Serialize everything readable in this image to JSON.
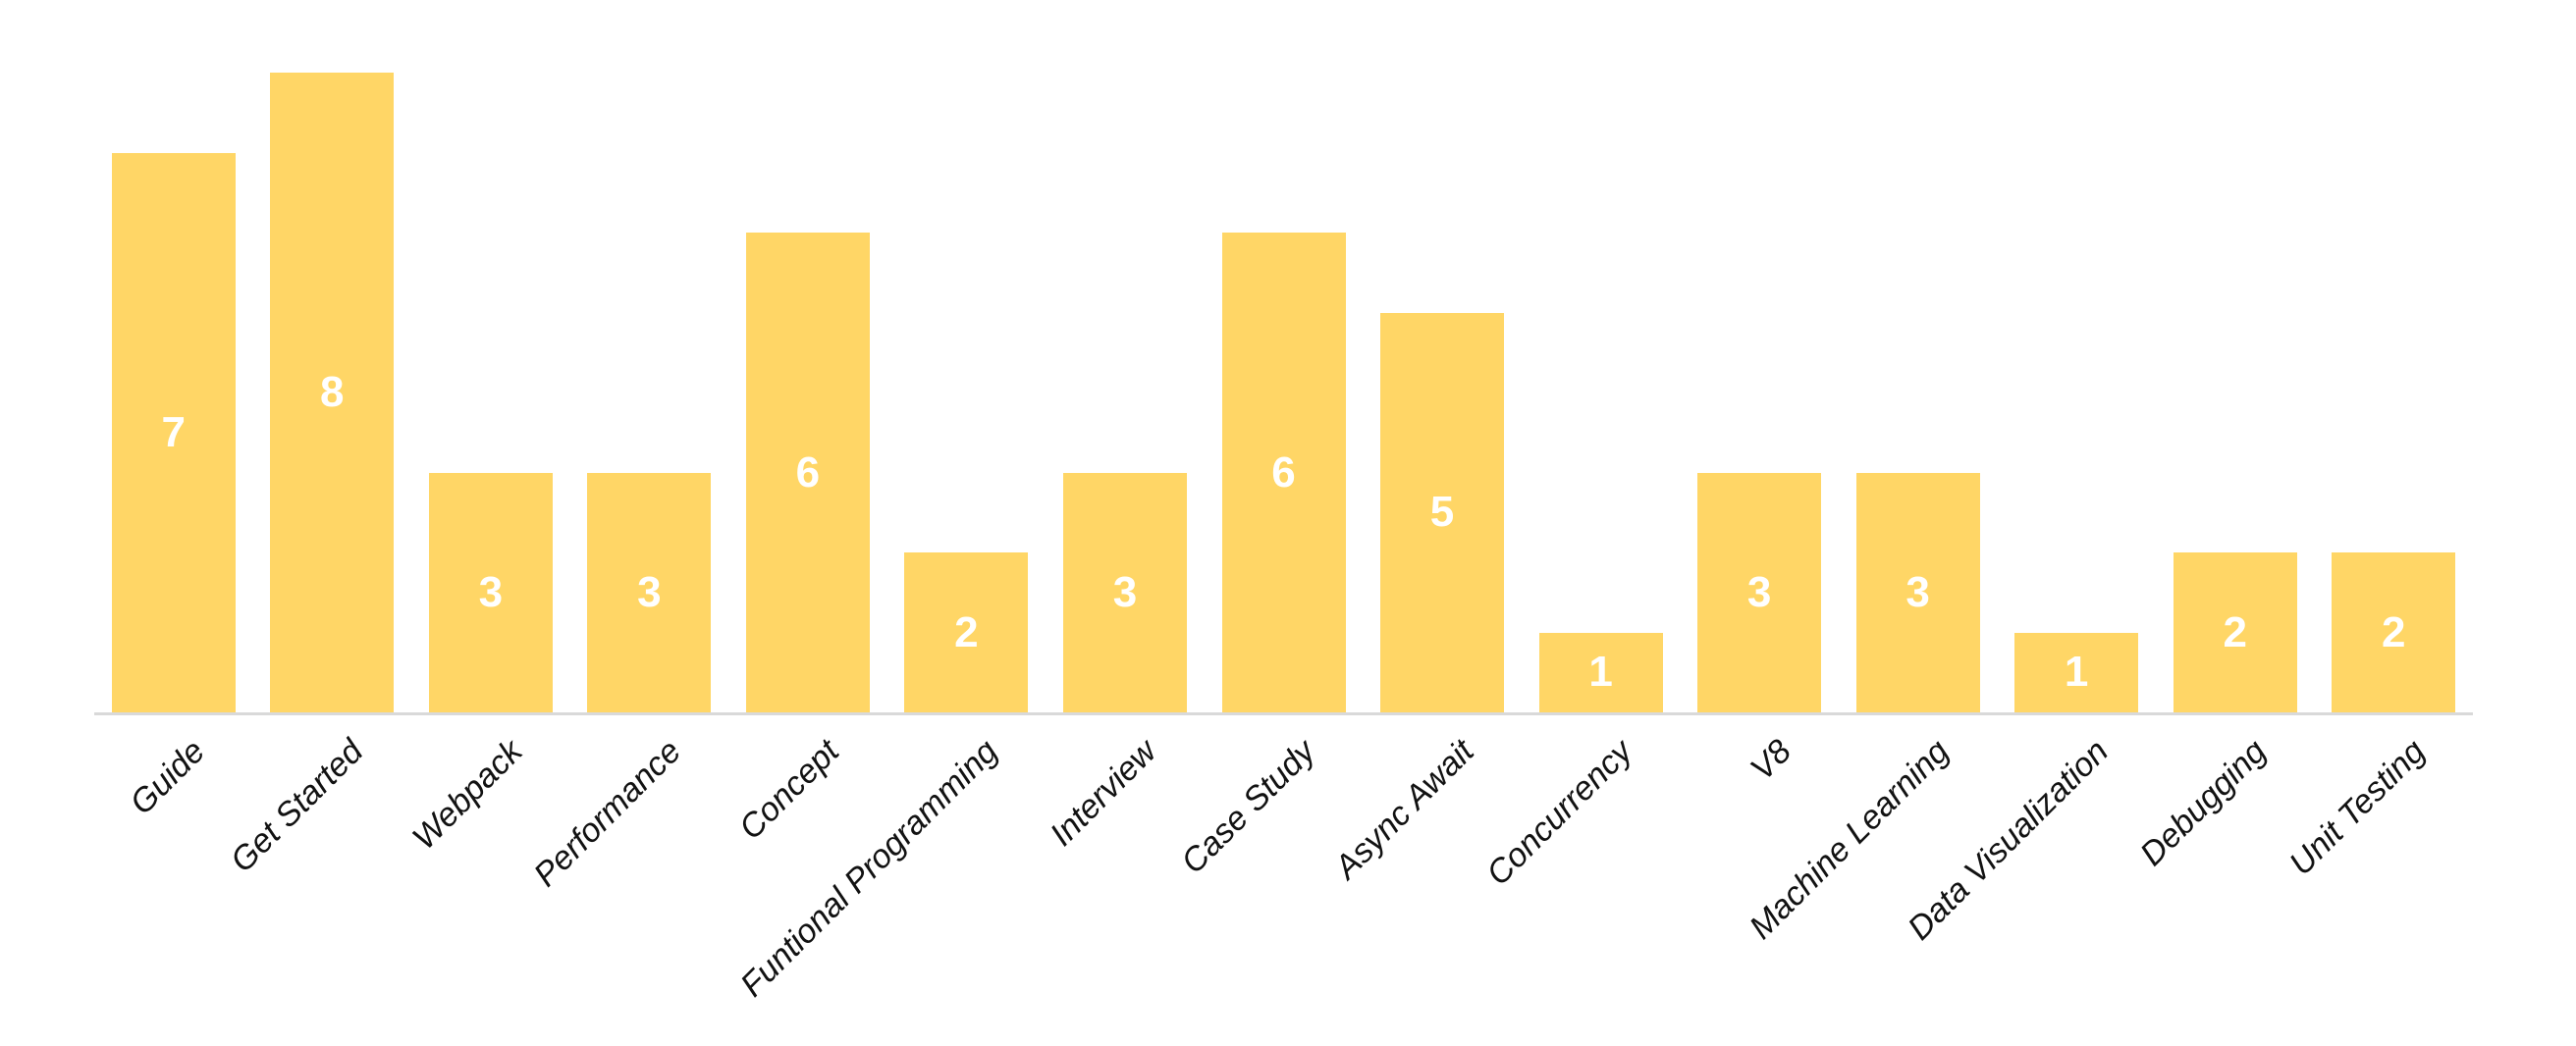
{
  "chart_data": {
    "type": "bar",
    "title": "",
    "xlabel": "",
    "ylabel": "",
    "categories": [
      "Guide",
      "Get Started",
      "Webpack",
      "Performance",
      "Concept",
      "Funtional Programming",
      "Interview",
      "Case Study",
      "Async Await",
      "Concurrency",
      "V8",
      "Machine Learning",
      "Data Visualization",
      "Debugging",
      "Unit Testing"
    ],
    "values": [
      7,
      8,
      3,
      3,
      6,
      2,
      3,
      6,
      5,
      1,
      3,
      3,
      1,
      2,
      2
    ],
    "ylim": [
      0,
      8
    ],
    "grid": false,
    "legend_position": "none",
    "value_labels_position": "inside-center",
    "bar_color": "#FFD666",
    "value_label_color": "#FFFFFF",
    "axis_line_color": "#D9D9D9",
    "category_label_color": "#121212"
  }
}
